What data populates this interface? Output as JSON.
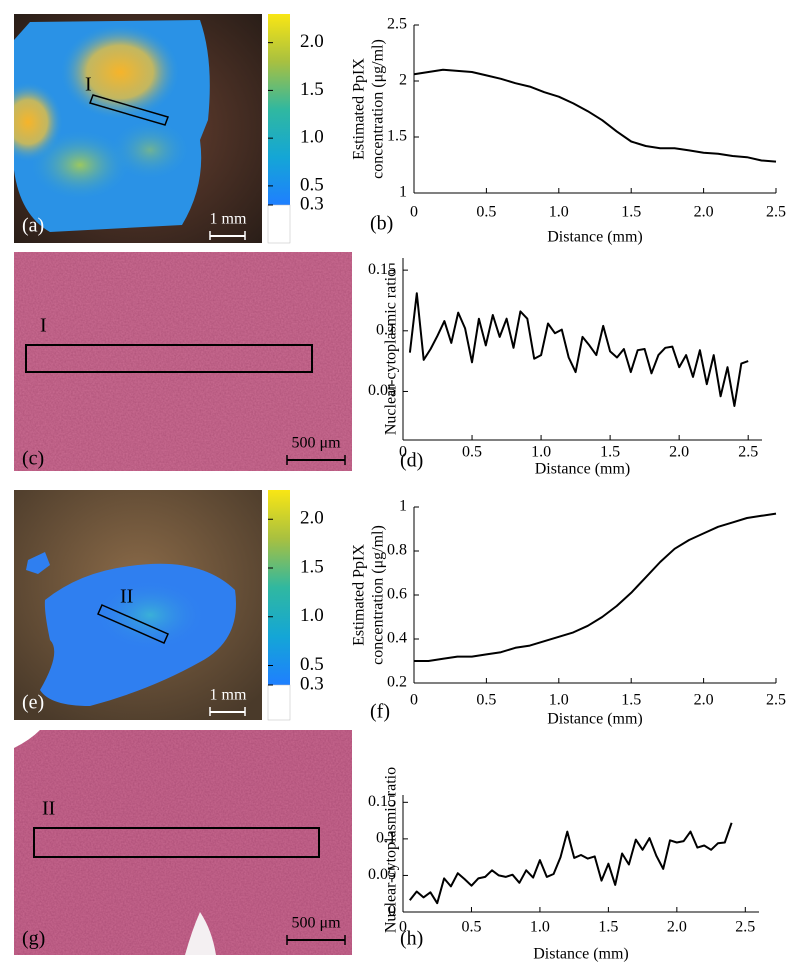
{
  "chart_data": [
    {
      "type": "line",
      "panel": "(b)",
      "xlabel": "Distance (mm)",
      "ylabel": [
        "Estimated PpIX",
        "concentration (μg/ml)"
      ],
      "x": [
        0,
        0.1,
        0.2,
        0.3,
        0.4,
        0.5,
        0.6,
        0.7,
        0.8,
        0.9,
        1.0,
        1.1,
        1.2,
        1.3,
        1.4,
        1.5,
        1.6,
        1.7,
        1.8,
        1.9,
        2.0,
        2.1,
        2.2,
        2.3,
        2.4,
        2.5
      ],
      "values": [
        2.06,
        2.08,
        2.1,
        2.09,
        2.08,
        2.05,
        2.02,
        1.98,
        1.95,
        1.9,
        1.86,
        1.8,
        1.73,
        1.65,
        1.55,
        1.46,
        1.42,
        1.4,
        1.4,
        1.38,
        1.36,
        1.35,
        1.33,
        1.32,
        1.29,
        1.28
      ],
      "color": "#000000",
      "xlim": [
        0,
        2.5
      ],
      "ylim": [
        1,
        2.5
      ],
      "xticks": [
        0,
        0.5,
        {
          "value": 1,
          "label": "1.0"
        },
        1.5,
        {
          "value": 2,
          "label": "2.0"
        },
        2.5
      ],
      "yticks": [
        1,
        1.5,
        2,
        2.5
      ]
    },
    {
      "type": "line",
      "panel": "(d)",
      "xlabel": "Distance (mm)",
      "ylabel": [
        "Nuclear-cytoplasmic ratio"
      ],
      "x": [
        0.05,
        0.1,
        0.15,
        0.2,
        0.25,
        0.3,
        0.35,
        0.4,
        0.45,
        0.5,
        0.55,
        0.6,
        0.65,
        0.7,
        0.75,
        0.8,
        0.85,
        0.9,
        0.95,
        1.0,
        1.05,
        1.1,
        1.15,
        1.2,
        1.25,
        1.3,
        1.35,
        1.4,
        1.45,
        1.5,
        1.55,
        1.6,
        1.65,
        1.7,
        1.75,
        1.8,
        1.85,
        1.9,
        1.95,
        2.0,
        2.05,
        2.1,
        2.15,
        2.2,
        2.25,
        2.3,
        2.35,
        2.4,
        2.45,
        2.5
      ],
      "values": [
        0.082,
        0.131,
        0.076,
        0.085,
        0.096,
        0.108,
        0.09,
        0.115,
        0.102,
        0.074,
        0.11,
        0.088,
        0.113,
        0.095,
        0.11,
        0.086,
        0.116,
        0.11,
        0.077,
        0.08,
        0.106,
        0.098,
        0.101,
        0.078,
        0.066,
        0.095,
        0.088,
        0.08,
        0.104,
        0.083,
        0.078,
        0.085,
        0.066,
        0.084,
        0.085,
        0.065,
        0.08,
        0.086,
        0.087,
        0.07,
        0.08,
        0.062,
        0.084,
        0.056,
        0.08,
        0.046,
        0.07,
        0.038,
        0.073,
        0.075
      ],
      "color": "#000000",
      "xlim": [
        0,
        2.6
      ],
      "ylim": [
        0.01,
        0.16
      ],
      "xticks": [
        0,
        0.5,
        {
          "value": 1,
          "label": "1.0"
        },
        1.5,
        {
          "value": 2,
          "label": "2.0"
        },
        2.5
      ],
      "yticks": [
        0.05,
        0.1,
        0.15
      ]
    },
    {
      "type": "line",
      "panel": "(f)",
      "xlabel": "Distance (mm)",
      "ylabel": [
        "Estimated PpIX",
        "concentration (μg/ml)"
      ],
      "x": [
        0,
        0.1,
        0.2,
        0.3,
        0.4,
        0.5,
        0.6,
        0.7,
        0.8,
        0.9,
        1.0,
        1.1,
        1.2,
        1.3,
        1.4,
        1.5,
        1.6,
        1.7,
        1.8,
        1.9,
        2.0,
        2.1,
        2.2,
        2.3,
        2.4,
        2.5
      ],
      "values": [
        0.3,
        0.3,
        0.31,
        0.32,
        0.32,
        0.33,
        0.34,
        0.36,
        0.37,
        0.39,
        0.41,
        0.43,
        0.46,
        0.5,
        0.55,
        0.61,
        0.68,
        0.75,
        0.81,
        0.85,
        0.88,
        0.91,
        0.93,
        0.95,
        0.96,
        0.97
      ],
      "color": "#000000",
      "xlim": [
        0,
        2.5
      ],
      "ylim": [
        0.2,
        1
      ],
      "xticks": [
        0,
        0.5,
        {
          "value": 1,
          "label": "1.0"
        },
        1.5,
        {
          "value": 2,
          "label": "2.0"
        },
        2.5
      ],
      "yticks": [
        0.2,
        0.4,
        0.6,
        0.8,
        1
      ]
    },
    {
      "type": "line",
      "panel": "(h)",
      "xlabel": "Distance (mm)",
      "ylabel": [
        "Nuclear-cytoplasmic ratio"
      ],
      "x": [
        0.05,
        0.1,
        0.15,
        0.2,
        0.25,
        0.3,
        0.35,
        0.4,
        0.45,
        0.5,
        0.55,
        0.6,
        0.65,
        0.7,
        0.75,
        0.8,
        0.85,
        0.9,
        0.95,
        1.0,
        1.05,
        1.1,
        1.15,
        1.2,
        1.25,
        1.3,
        1.35,
        1.4,
        1.45,
        1.5,
        1.55,
        1.6,
        1.65,
        1.7,
        1.75,
        1.8,
        1.85,
        1.9,
        1.95,
        2.0,
        2.05,
        2.1,
        2.15,
        2.2,
        2.25,
        2.3,
        2.35,
        2.4
      ],
      "values": [
        0.016,
        0.028,
        0.02,
        0.027,
        0.012,
        0.046,
        0.035,
        0.053,
        0.045,
        0.036,
        0.046,
        0.048,
        0.057,
        0.05,
        0.048,
        0.051,
        0.04,
        0.057,
        0.047,
        0.071,
        0.048,
        0.052,
        0.075,
        0.11,
        0.074,
        0.078,
        0.073,
        0.076,
        0.043,
        0.066,
        0.037,
        0.08,
        0.065,
        0.099,
        0.085,
        0.101,
        0.077,
        0.059,
        0.098,
        0.095,
        0.097,
        0.11,
        0.088,
        0.091,
        0.085,
        0.094,
        0.095,
        0.122
      ],
      "color": "#000000",
      "xlim": [
        0,
        2.6
      ],
      "ylim": [
        0,
        0.16
      ],
      "xticks": [
        0,
        0.5,
        {
          "value": 1,
          "label": "1.0"
        },
        1.5,
        {
          "value": 2,
          "label": "2.0"
        },
        2.5
      ],
      "yticks": [
        0,
        0.05,
        0.1,
        0.15
      ]
    }
  ],
  "images": [
    {
      "panel": "(a)",
      "region": "I",
      "scale_bar": "1 mm",
      "colorbar": {
        "lim": [
          0.3,
          2.3
        ],
        "ticks": [
          {
            "value": 2,
            "label": "2.0"
          },
          1.5,
          {
            "value": 1,
            "label": "1.0"
          },
          0.5,
          0.3
        ]
      }
    },
    {
      "panel": "(c)",
      "region": "I",
      "scale_bar": "500 μm"
    },
    {
      "panel": "(e)",
      "region": "II",
      "scale_bar": "1 mm",
      "colorbar": {
        "lim": [
          0.3,
          2.3
        ],
        "ticks": [
          {
            "value": 2,
            "label": "2.0"
          },
          1.5,
          {
            "value": 1,
            "label": "1.0"
          },
          0.5,
          0.3
        ]
      }
    },
    {
      "panel": "(g)",
      "region": "II",
      "scale_bar": "500 μm"
    }
  ]
}
